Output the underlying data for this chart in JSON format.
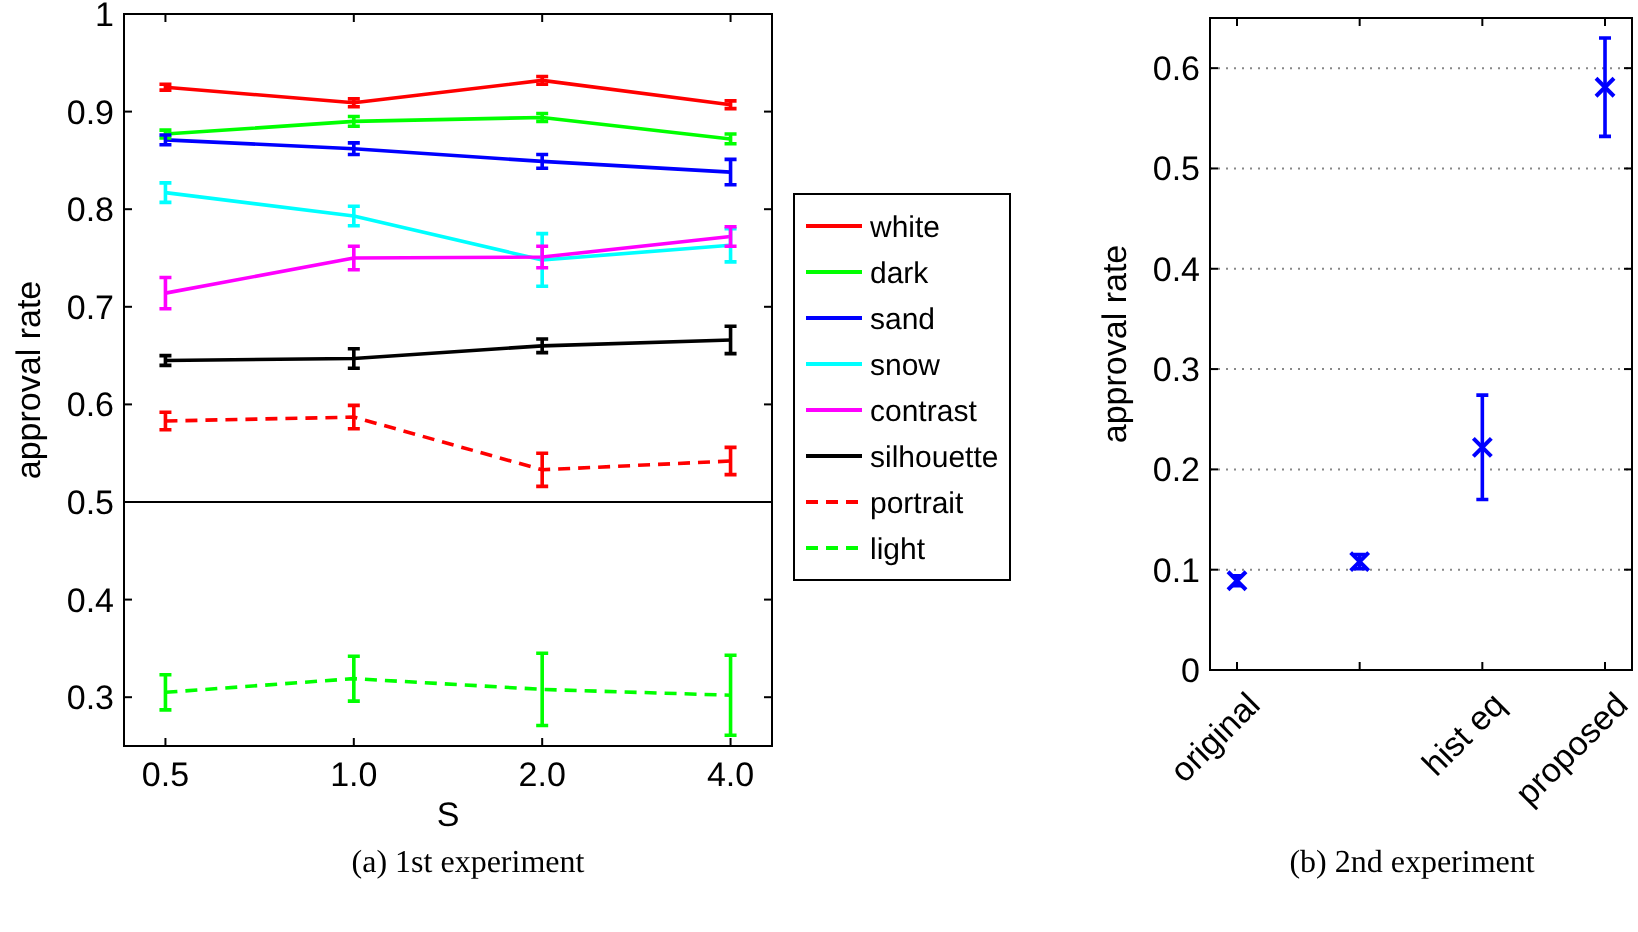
{
  "chart_data": [
    {
      "type": "line",
      "xlabel": "S",
      "ylabel": "approval rate",
      "categories": [
        "0.5",
        "1.0",
        "2.0",
        "4.0"
      ],
      "ylim": [
        0.25,
        1
      ],
      "yticks": [
        0.3,
        0.4,
        0.5,
        0.6,
        0.7,
        0.8,
        0.9,
        {
          "value": 1,
          "label": "1"
        }
      ],
      "grid": false,
      "legend": "right",
      "ref_lines": [
        {
          "axis": "y",
          "value": 0.5,
          "color": "#000000"
        }
      ],
      "annotations": [
        "(a) 1st experiment"
      ],
      "series": [
        {
          "name": "white",
          "color": "#ff0000",
          "line_style": "solid",
          "values": [
            0.925,
            0.909,
            0.932,
            0.907
          ],
          "errors": [
            0.003,
            0.004,
            0.004,
            0.004
          ]
        },
        {
          "name": "dark",
          "color": "#00ff00",
          "line_style": "solid",
          "values": [
            0.877,
            0.89,
            0.894,
            0.872
          ],
          "errors": [
            0.004,
            0.005,
            0.004,
            0.005
          ]
        },
        {
          "name": "sand",
          "color": "#0000ff",
          "line_style": "solid",
          "values": [
            0.871,
            0.862,
            0.849,
            0.838
          ],
          "errors": [
            0.005,
            0.006,
            0.007,
            0.013
          ]
        },
        {
          "name": "snow",
          "color": "#00ffff",
          "line_style": "solid",
          "values": [
            0.817,
            0.793,
            0.748,
            0.763
          ],
          "errors": [
            0.01,
            0.01,
            0.027,
            0.017
          ]
        },
        {
          "name": "contrast",
          "color": "#ff00ff",
          "line_style": "solid",
          "values": [
            0.714,
            0.75,
            0.751,
            0.772
          ],
          "errors": [
            0.016,
            0.012,
            0.011,
            0.01
          ]
        },
        {
          "name": "silhouette",
          "color": "#000000",
          "line_style": "solid",
          "values": [
            0.645,
            0.647,
            0.66,
            0.666
          ],
          "errors": [
            0.005,
            0.01,
            0.007,
            0.014
          ]
        },
        {
          "name": "portrait",
          "color": "#ff0000",
          "line_style": "dashed",
          "values": [
            0.583,
            0.587,
            0.533,
            0.542
          ],
          "errors": [
            0.009,
            0.012,
            0.017,
            0.014
          ]
        },
        {
          "name": "light",
          "color": "#00ff00",
          "line_style": "dashed",
          "values": [
            0.305,
            0.319,
            0.308,
            0.302
          ],
          "errors": [
            0.018,
            0.023,
            0.037,
            0.041
          ]
        }
      ]
    },
    {
      "type": "scatter",
      "ylabel": "approval rate",
      "categories": [
        "original",
        null,
        "hist eq",
        "proposed"
      ],
      "ylim": [
        0,
        0.65
      ],
      "yticks": [
        0,
        0.1,
        0.2,
        0.3,
        0.4,
        0.5,
        0.6
      ],
      "grid": "y",
      "legend": false,
      "marker": "cross",
      "annotations": [
        "(b) 2nd experiment"
      ],
      "series": [
        {
          "color": "#0000ff",
          "values": [
            0.089,
            0.108,
            0.222,
            0.581
          ],
          "errors": [
            0.005,
            0.007,
            0.052,
            0.049
          ]
        }
      ]
    }
  ]
}
